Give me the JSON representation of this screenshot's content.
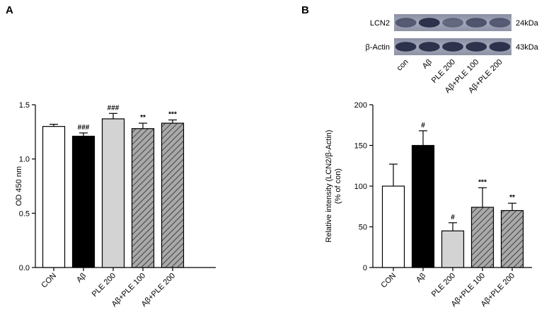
{
  "panels": {
    "a": "A",
    "b": "B"
  },
  "chart_data": [
    {
      "type": "bar",
      "categories": [
        "CON",
        "Aβ",
        "PLE 200",
        "Aβ+PLE 100",
        "Aβ+PLE 200"
      ],
      "values": [
        1.3,
        1.21,
        1.37,
        1.28,
        1.33
      ],
      "errors": [
        0.02,
        0.03,
        0.05,
        0.05,
        0.03
      ],
      "significance": [
        "",
        "###",
        "###",
        "**",
        "***"
      ],
      "ylabel": "OD 450 nm",
      "ylim": [
        0,
        1.5
      ],
      "yticks": [
        "0.0",
        "0.5",
        "1.0",
        "1.5"
      ],
      "ytick_values": [
        0,
        0.5,
        1.0,
        1.5
      ],
      "bar_styles": [
        "white",
        "black",
        "lightgray",
        "hatch",
        "hatch"
      ]
    },
    {
      "type": "bar",
      "categories": [
        "CON",
        "Aβ",
        "PLE 200",
        "Aβ+PLE 100",
        "Aβ+PLE 200"
      ],
      "values": [
        100,
        150,
        45,
        74,
        70
      ],
      "errors": [
        27,
        18,
        10,
        24,
        9
      ],
      "significance": [
        "",
        "#",
        "#",
        "***",
        "**"
      ],
      "ylabel": "Relative intensity (LCN2/β-Actin)",
      "ylabel2": "(% of con)",
      "ylim": [
        0,
        200
      ],
      "yticks": [
        "0",
        "50",
        "100",
        "150",
        "200"
      ],
      "ytick_values": [
        0,
        50,
        100,
        150,
        200
      ],
      "bar_styles": [
        "white",
        "black",
        "lightgray",
        "hatch",
        "hatch"
      ]
    }
  ],
  "blot": {
    "rows": [
      {
        "name": "LCN2",
        "size": "24kDa",
        "intensities": [
          0.55,
          0.85,
          0.45,
          0.6,
          0.55
        ]
      },
      {
        "name": "β-Actin",
        "size": "43kDa",
        "intensities": [
          0.85,
          0.85,
          0.85,
          0.85,
          0.85
        ]
      }
    ],
    "lanes": [
      "con",
      "Aβ",
      "PLE 200",
      "Aβ+PLE 100",
      "Aβ+PLE 200"
    ]
  },
  "colors": {
    "black_bar": "#000000",
    "gray_bar": "#d3d3d3",
    "hatch_bg": "#a9a9a9",
    "axis": "#000000"
  }
}
